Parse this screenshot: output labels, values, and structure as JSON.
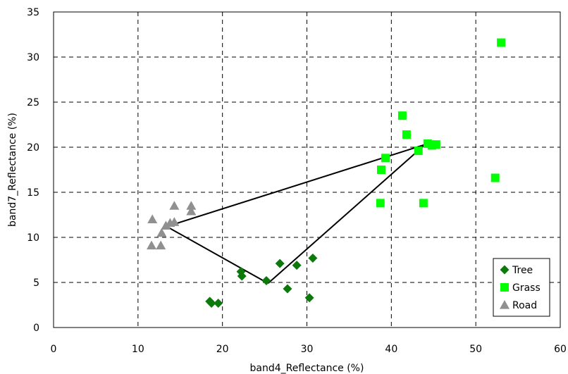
{
  "chart_data": {
    "type": "scatter",
    "title": "",
    "xlabel": "band4_Reflectance (%)",
    "ylabel": "band7_Reflectance (%)",
    "xlim": [
      0,
      60
    ],
    "ylim": [
      0,
      35
    ],
    "xticks": [
      0,
      10,
      20,
      30,
      40,
      50,
      60
    ],
    "yticks": [
      0,
      5,
      10,
      15,
      20,
      25,
      30,
      35
    ],
    "grid": true,
    "legend_position": "bottom-right",
    "series": [
      {
        "name": "Tree",
        "marker": "diamond",
        "color": "#0B7A0B",
        "points": [
          [
            18.5,
            2.9
          ],
          [
            18.7,
            2.7
          ],
          [
            19.5,
            2.7
          ],
          [
            22.2,
            6.2
          ],
          [
            22.3,
            5.7
          ],
          [
            25.2,
            5.2
          ],
          [
            26.8,
            7.1
          ],
          [
            27.7,
            4.3
          ],
          [
            28.8,
            6.9
          ],
          [
            30.3,
            3.3
          ],
          [
            30.7,
            7.7
          ]
        ]
      },
      {
        "name": "Grass",
        "marker": "square",
        "color": "#00FF00",
        "points": [
          [
            38.7,
            13.8
          ],
          [
            38.8,
            17.5
          ],
          [
            39.3,
            18.8
          ],
          [
            41.3,
            23.5
          ],
          [
            41.8,
            21.4
          ],
          [
            43.2,
            19.6
          ],
          [
            43.8,
            13.8
          ],
          [
            44.3,
            20.4
          ],
          [
            44.8,
            20.2
          ],
          [
            45.3,
            20.3
          ],
          [
            52.3,
            16.6
          ],
          [
            53.0,
            31.6
          ]
        ]
      },
      {
        "name": "Road",
        "marker": "triangle",
        "color": "#909090",
        "points": [
          [
            11.6,
            9.1
          ],
          [
            11.7,
            12.0
          ],
          [
            12.7,
            9.1
          ],
          [
            12.8,
            10.5
          ],
          [
            13.3,
            11.3
          ],
          [
            13.8,
            11.6
          ],
          [
            14.3,
            11.7
          ],
          [
            14.3,
            13.5
          ],
          [
            16.3,
            13.5
          ],
          [
            16.3,
            12.9
          ]
        ]
      }
    ],
    "triangle_lines": [
      [
        [
          13.4,
          11.2
        ],
        [
          25.4,
          4.9
        ]
      ],
      [
        [
          25.4,
          4.9
        ],
        [
          44.0,
          20.3
        ]
      ],
      [
        [
          13.4,
          11.2
        ],
        [
          44.0,
          20.3
        ]
      ],
      [
        [
          44.0,
          20.3
        ],
        [
          45.0,
          19.8
        ]
      ]
    ]
  }
}
